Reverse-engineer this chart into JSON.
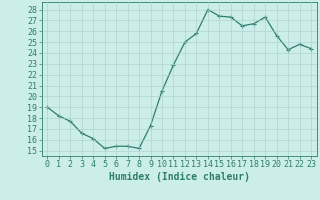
{
  "x": [
    0,
    1,
    2,
    3,
    4,
    5,
    6,
    7,
    8,
    9,
    10,
    11,
    12,
    13,
    14,
    15,
    16,
    17,
    18,
    19,
    20,
    21,
    22,
    23
  ],
  "y": [
    19,
    18.2,
    17.7,
    16.6,
    16.1,
    15.2,
    15.4,
    15.4,
    15.2,
    17.3,
    20.5,
    22.9,
    25.0,
    25.8,
    28.0,
    27.4,
    27.3,
    26.5,
    26.7,
    27.3,
    25.6,
    24.3,
    24.8,
    24.4
  ],
  "line_color": "#2e7d6e",
  "marker": "+",
  "markersize": 3,
  "linewidth": 0.9,
  "bg_color": "#cceee8",
  "grid_color": "#aacccc",
  "xlabel": "Humidex (Indice chaleur)",
  "xlim": [
    -0.5,
    23.5
  ],
  "ylim": [
    14.5,
    28.7
  ],
  "yticks": [
    15,
    16,
    17,
    18,
    19,
    20,
    21,
    22,
    23,
    24,
    25,
    26,
    27,
    28
  ],
  "xticks": [
    0,
    1,
    2,
    3,
    4,
    5,
    6,
    7,
    8,
    9,
    10,
    11,
    12,
    13,
    14,
    15,
    16,
    17,
    18,
    19,
    20,
    21,
    22,
    23
  ],
  "tick_color": "#2e7d6e",
  "label_color": "#2e7d6e",
  "font_size": 6,
  "xlabel_fontsize": 7
}
